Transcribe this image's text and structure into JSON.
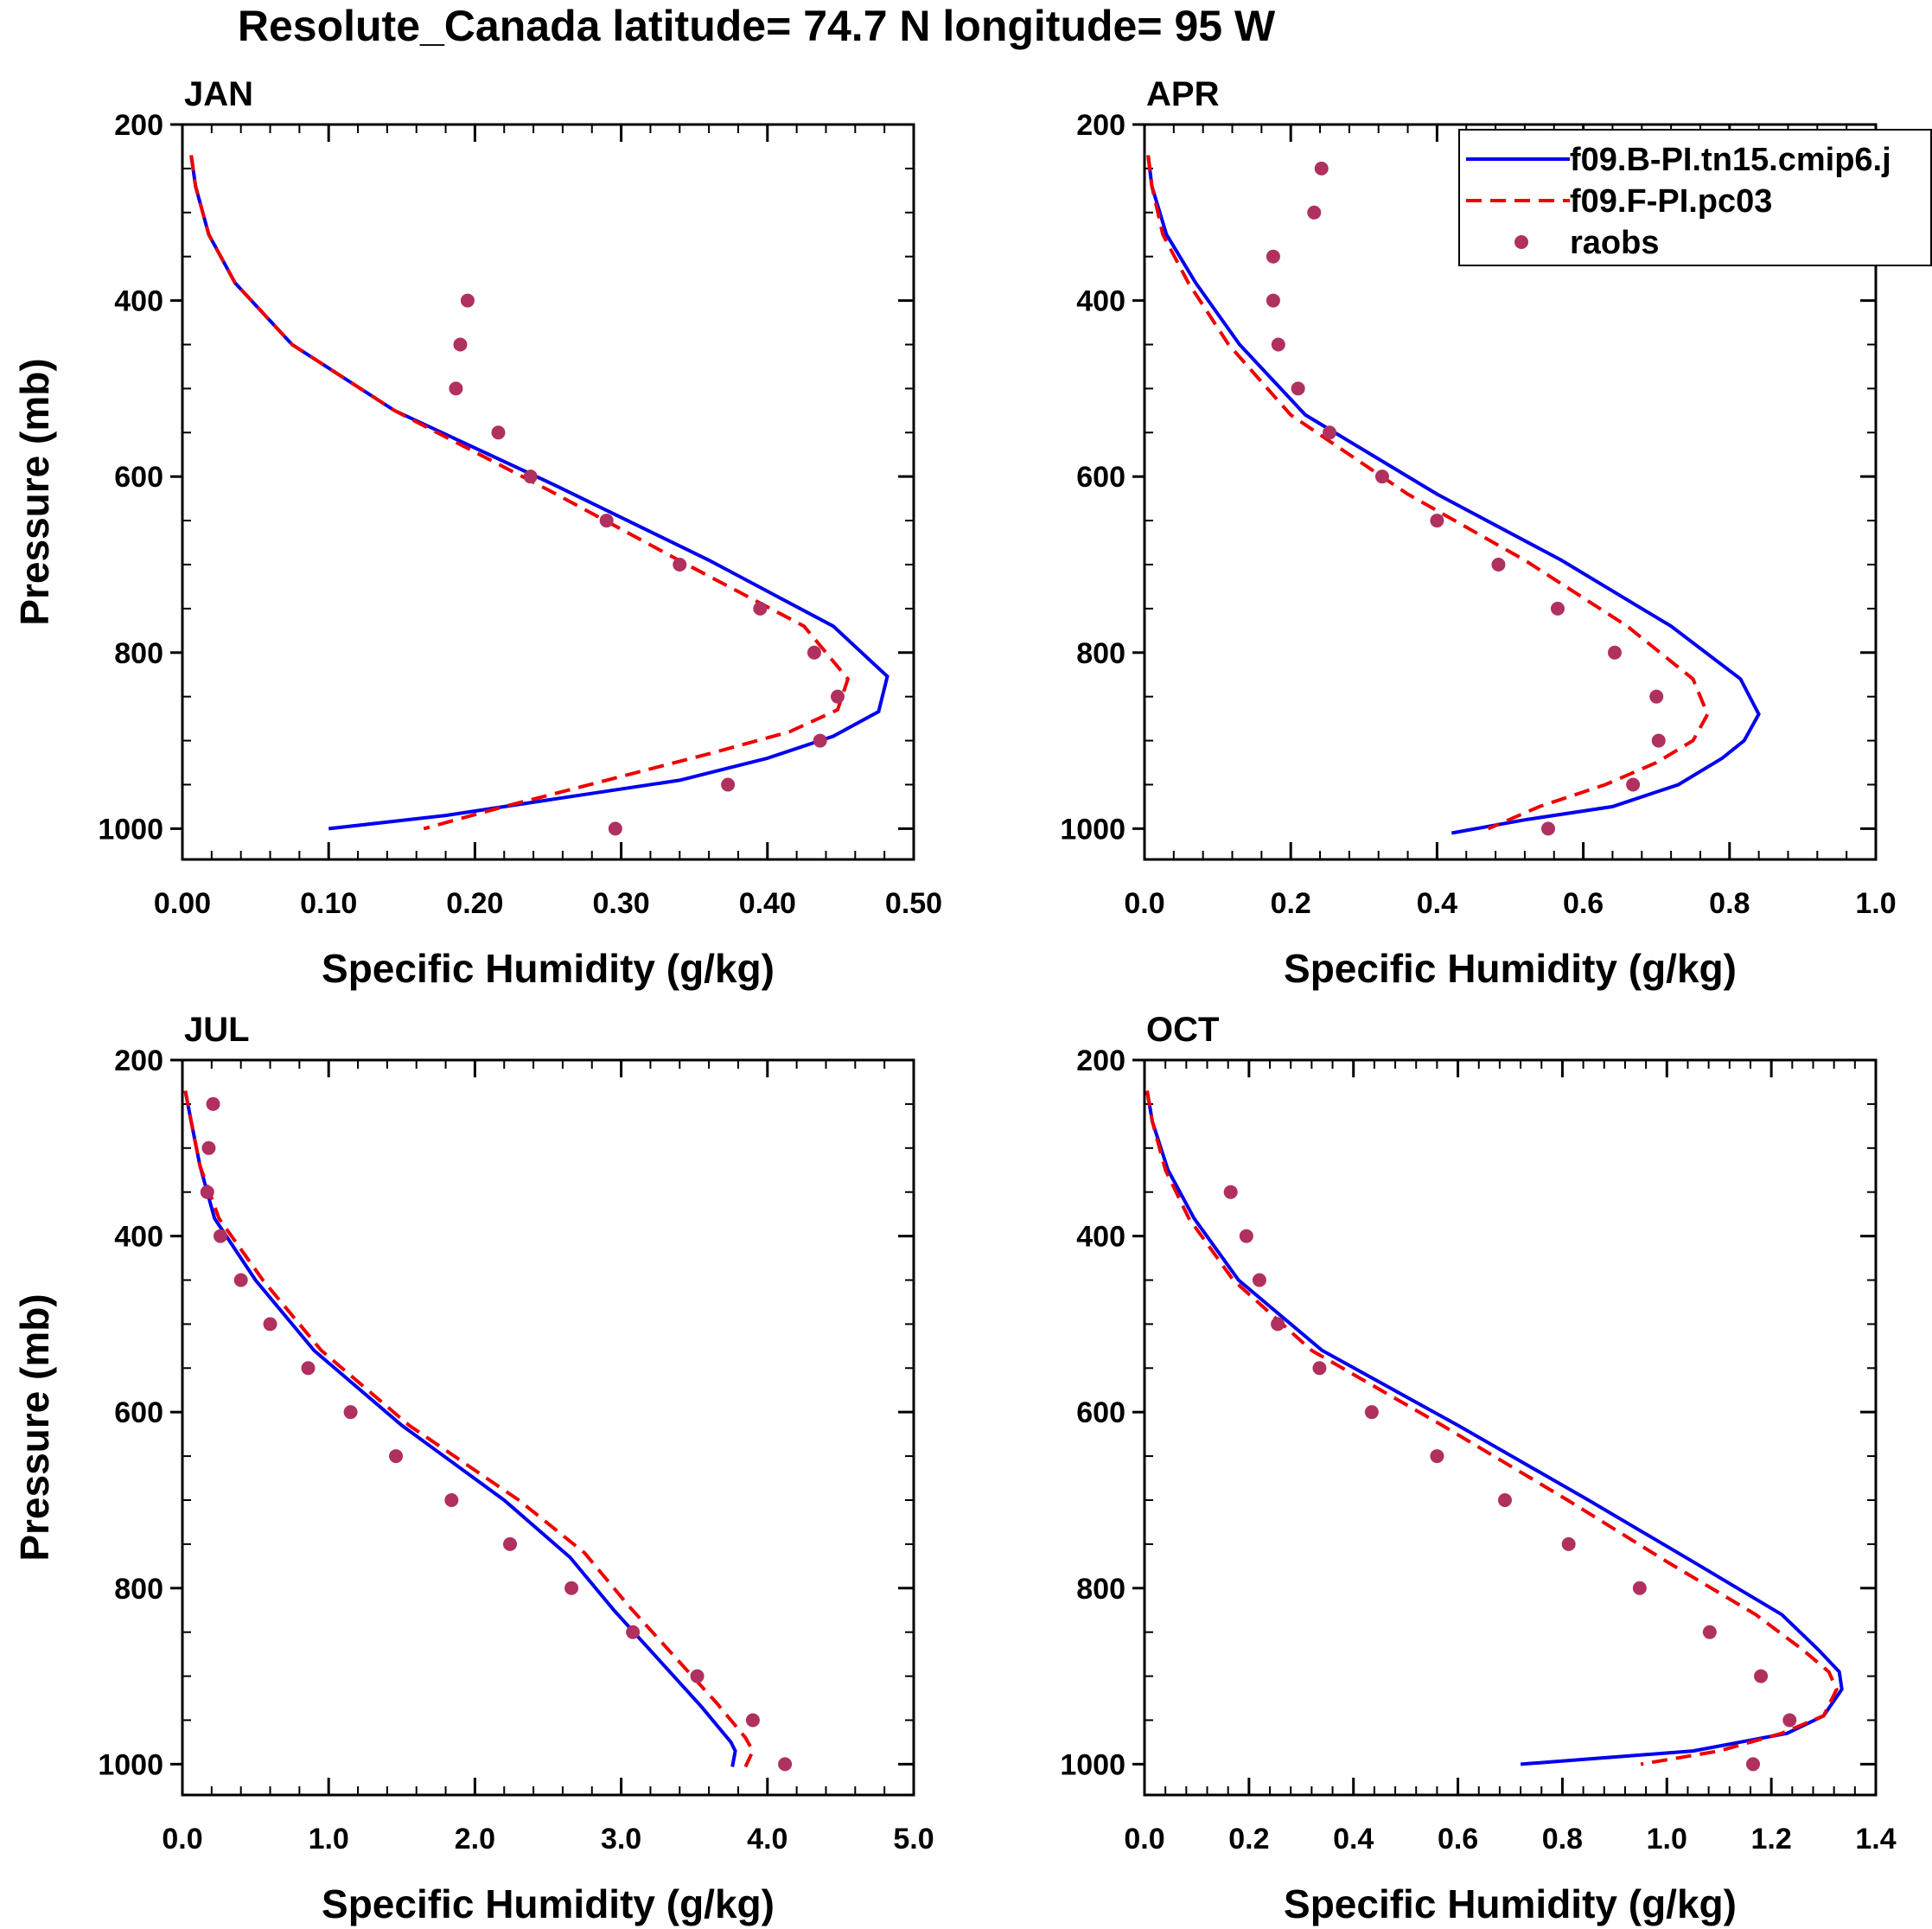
{
  "title": "Resolute_Canada  latitude= 74.7 N longitude= 95 W",
  "colors": {
    "model_b": "#0000ee",
    "model_f": "#ee0000",
    "raobs": "#b03060"
  },
  "legend": {
    "position": "top-right of APR panel",
    "entries": [
      {
        "label": "f09.B-PI.tn15.cmip6.j",
        "style": "solid",
        "color": "#0000ee"
      },
      {
        "label": "f09.F-PI.pc03",
        "style": "dashed",
        "color": "#ee0000"
      },
      {
        "label": "raobs",
        "style": "marker",
        "color": "#b03060"
      }
    ]
  },
  "chart_data": [
    {
      "type": "line",
      "title": "JAN",
      "xlabel": "Specific Humidity (g/kg)",
      "ylabel": "Pressure (mb)",
      "xlim": [
        0,
        0.5
      ],
      "ylim": [
        1035,
        200
      ],
      "xticks": [
        0,
        0.1,
        0.2,
        0.3,
        0.4,
        0.5
      ],
      "xtick_labels": [
        "0.00",
        "0.10",
        "0.20",
        "0.30",
        "0.40",
        "0.50"
      ],
      "yticks": [
        200,
        400,
        600,
        800,
        1000
      ],
      "ytick_labels": [
        "200",
        "400",
        "600",
        "800",
        "1000"
      ],
      "series": [
        {
          "name": "f09.B-PI.tn15.cmip6.j",
          "style": "solid",
          "x": [
            0.006,
            0.009,
            0.018,
            0.036,
            0.075,
            0.145,
            0.255,
            0.36,
            0.445,
            0.482,
            0.476,
            0.445,
            0.4,
            0.34,
            0.26,
            0.18,
            0.1
          ],
          "y": [
            235,
            270,
            325,
            380,
            450,
            525,
            610,
            695,
            770,
            827,
            867,
            895,
            920,
            945,
            965,
            985,
            1000
          ]
        },
        {
          "name": "f09.F-PI.pc03",
          "style": "dashed",
          "x": [
            0.006,
            0.009,
            0.018,
            0.036,
            0.075,
            0.145,
            0.25,
            0.345,
            0.425,
            0.455,
            0.448,
            0.415,
            0.36,
            0.29,
            0.22,
            0.165
          ],
          "y": [
            235,
            270,
            325,
            380,
            450,
            525,
            615,
            700,
            770,
            830,
            865,
            890,
            915,
            945,
            975,
            1000
          ]
        },
        {
          "name": "raobs",
          "style": "marker",
          "x": [
            0.195,
            0.19,
            0.187,
            0.216,
            0.238,
            0.29,
            0.34,
            0.395,
            0.432,
            0.448,
            0.436,
            0.373,
            0.296
          ],
          "y": [
            400,
            450,
            500,
            550,
            600,
            650,
            700,
            750,
            800,
            850,
            900,
            950,
            1000
          ]
        }
      ]
    },
    {
      "type": "line",
      "title": "APR",
      "xlabel": "Specific Humidity (g/kg)",
      "ylabel": "",
      "xlim": [
        0,
        1.0
      ],
      "ylim": [
        1035,
        200
      ],
      "xticks": [
        0,
        0.2,
        0.4,
        0.6,
        0.8,
        1.0
      ],
      "xtick_labels": [
        "0.0",
        "0.2",
        "0.4",
        "0.6",
        "0.8",
        "1.0"
      ],
      "yticks": [
        200,
        400,
        600,
        800,
        1000
      ],
      "ytick_labels": [
        "200",
        "400",
        "600",
        "800",
        "1000"
      ],
      "series": [
        {
          "name": "f09.B-PI.tn15.cmip6.j",
          "style": "solid",
          "x": [
            0.005,
            0.01,
            0.03,
            0.07,
            0.13,
            0.22,
            0.4,
            0.57,
            0.72,
            0.815,
            0.84,
            0.82,
            0.79,
            0.73,
            0.64,
            0.52,
            0.42
          ],
          "y": [
            235,
            270,
            325,
            380,
            450,
            530,
            620,
            695,
            770,
            830,
            870,
            900,
            920,
            950,
            975,
            990,
            1005
          ]
        },
        {
          "name": "f09.F-PI.pc03",
          "style": "dashed",
          "x": [
            0.005,
            0.01,
            0.025,
            0.06,
            0.115,
            0.2,
            0.36,
            0.52,
            0.66,
            0.75,
            0.77,
            0.75,
            0.7,
            0.63,
            0.54,
            0.47
          ],
          "y": [
            235,
            270,
            325,
            380,
            450,
            530,
            620,
            695,
            770,
            830,
            870,
            900,
            925,
            950,
            975,
            1000
          ]
        },
        {
          "name": "raobs",
          "style": "marker",
          "x": [
            0.242,
            0.232,
            0.176,
            0.176,
            0.183,
            0.21,
            0.253,
            0.325,
            0.4,
            0.484,
            0.565,
            0.643,
            0.7,
            0.703,
            0.668,
            0.552
          ],
          "y": [
            250,
            300,
            350,
            400,
            450,
            500,
            550,
            600,
            650,
            700,
            750,
            800,
            850,
            900,
            950,
            1000
          ]
        }
      ]
    },
    {
      "type": "line",
      "title": "JUL",
      "xlabel": "Specific Humidity (g/kg)",
      "ylabel": "Pressure (mb)",
      "xlim": [
        0,
        5.0
      ],
      "ylim": [
        1035,
        200
      ],
      "xticks": [
        0,
        1,
        2,
        3,
        4,
        5
      ],
      "xtick_labels": [
        "0.0",
        "1.0",
        "2.0",
        "3.0",
        "4.0",
        "5.0"
      ],
      "yticks": [
        200,
        400,
        600,
        800,
        1000
      ],
      "ytick_labels": [
        "200",
        "400",
        "600",
        "800",
        "1000"
      ],
      "series": [
        {
          "name": "f09.B-PI.tn15.cmip6.j",
          "style": "solid",
          "x": [
            0.02,
            0.06,
            0.12,
            0.22,
            0.5,
            0.9,
            1.5,
            2.2,
            2.65,
            2.95,
            3.25,
            3.55,
            3.75,
            3.78,
            3.76
          ],
          "y": [
            235,
            270,
            320,
            380,
            450,
            530,
            615,
            700,
            765,
            825,
            880,
            935,
            975,
            985,
            1003
          ]
        },
        {
          "name": "f09.F-PI.pc03",
          "style": "dashed",
          "x": [
            0.02,
            0.06,
            0.12,
            0.25,
            0.55,
            0.95,
            1.55,
            2.3,
            2.75,
            3.05,
            3.35,
            3.65,
            3.85,
            3.9,
            3.85
          ],
          "y": [
            235,
            270,
            320,
            380,
            450,
            530,
            615,
            700,
            760,
            820,
            875,
            930,
            970,
            985,
            1003
          ]
        },
        {
          "name": "raobs",
          "style": "marker",
          "x": [
            0.21,
            0.18,
            0.17,
            0.26,
            0.4,
            0.6,
            0.86,
            1.15,
            1.46,
            1.84,
            2.24,
            2.66,
            3.08,
            3.52,
            3.9,
            4.12
          ],
          "y": [
            250,
            300,
            350,
            400,
            450,
            500,
            550,
            600,
            650,
            700,
            750,
            800,
            850,
            900,
            950,
            1000
          ]
        }
      ]
    },
    {
      "type": "line",
      "title": "OCT",
      "xlabel": "Specific Humidity (g/kg)",
      "ylabel": "",
      "xlim": [
        0,
        1.4
      ],
      "ylim": [
        1035,
        200
      ],
      "xticks": [
        0,
        0.2,
        0.4,
        0.6,
        0.8,
        1.0,
        1.2,
        1.4
      ],
      "xtick_labels": [
        "0.0",
        "0.2",
        "0.4",
        "0.6",
        "0.8",
        "1.0",
        "1.2",
        "1.4"
      ],
      "yticks": [
        200,
        400,
        600,
        800,
        1000
      ],
      "ytick_labels": [
        "200",
        "400",
        "600",
        "800",
        "1000"
      ],
      "series": [
        {
          "name": "f09.B-PI.tn15.cmip6.j",
          "style": "solid",
          "x": [
            0.005,
            0.015,
            0.045,
            0.095,
            0.18,
            0.34,
            0.6,
            0.85,
            1.05,
            1.22,
            1.29,
            1.33,
            1.335,
            1.3,
            1.23,
            1.05,
            0.72
          ],
          "y": [
            235,
            270,
            325,
            380,
            450,
            530,
            615,
            700,
            770,
            830,
            870,
            895,
            915,
            945,
            965,
            985,
            1000
          ]
        },
        {
          "name": "f09.F-PI.pc03",
          "style": "dashed",
          "x": [
            0.005,
            0.015,
            0.04,
            0.085,
            0.17,
            0.32,
            0.57,
            0.81,
            1.0,
            1.17,
            1.26,
            1.31,
            1.325,
            1.3,
            1.22,
            1.1,
            0.95
          ],
          "y": [
            235,
            270,
            325,
            380,
            450,
            530,
            615,
            700,
            770,
            830,
            870,
            895,
            915,
            945,
            965,
            985,
            1000
          ]
        },
        {
          "name": "raobs",
          "style": "marker",
          "x": [
            0.165,
            0.195,
            0.22,
            0.255,
            0.335,
            0.435,
            0.56,
            0.69,
            0.812,
            0.948,
            1.082,
            1.18,
            1.235,
            1.165
          ],
          "y": [
            350,
            400,
            450,
            500,
            550,
            600,
            650,
            700,
            750,
            800,
            850,
            900,
            950,
            1000
          ]
        }
      ]
    }
  ]
}
